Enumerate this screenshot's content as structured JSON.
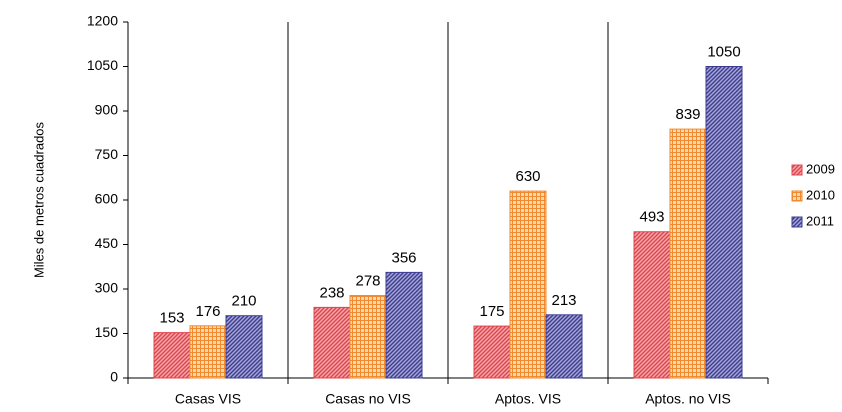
{
  "chart_data": {
    "type": "bar",
    "y_label": "Miles de metros cuadrados",
    "categories": [
      "Casas VIS",
      "Casas no VIS",
      "Aptos. VIS",
      "Aptos. no VIS"
    ],
    "series": [
      {
        "name": "2009",
        "color": "#e0434a",
        "pattern": "diagonal",
        "values": [
          153,
          238,
          175,
          493
        ]
      },
      {
        "name": "2010",
        "color": "#f08a2c",
        "pattern": "grid",
        "values": [
          176,
          278,
          630,
          839
        ]
      },
      {
        "name": "2011",
        "color": "#3c3c96",
        "pattern": "diagonal",
        "values": [
          210,
          356,
          213,
          1050
        ]
      }
    ],
    "ylim": [
      0,
      1200
    ],
    "yticks": [
      0,
      150,
      300,
      450,
      600,
      750,
      900,
      1050,
      1200
    ],
    "legend": "right"
  }
}
